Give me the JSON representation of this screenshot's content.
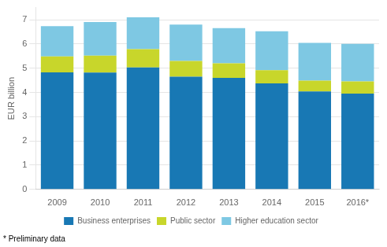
{
  "chart_data": {
    "type": "bar",
    "stacked": true,
    "categories": [
      "2009",
      "2010",
      "2011",
      "2012",
      "2013",
      "2014",
      "2015",
      "2016*"
    ],
    "series": [
      {
        "name": "Business enterprises",
        "color": "#1878b4",
        "values": [
          4.83,
          4.82,
          5.03,
          4.65,
          4.6,
          4.37,
          4.04,
          3.95
        ]
      },
      {
        "name": "Public sector",
        "color": "#c8d62b",
        "values": [
          0.65,
          0.7,
          0.75,
          0.65,
          0.6,
          0.55,
          0.45,
          0.5
        ]
      },
      {
        "name": "Higher education sector",
        "color": "#7ec8e3",
        "values": [
          1.25,
          1.38,
          1.32,
          1.5,
          1.45,
          1.6,
          1.55,
          1.55
        ]
      }
    ],
    "ylabel": "EUR billion",
    "ylim": [
      0,
      7.5
    ],
    "yticks": [
      0,
      1,
      2,
      3,
      4,
      5,
      6,
      7
    ],
    "grid": true,
    "legend": "bottom",
    "annotations": [
      "* Preliminary data"
    ]
  }
}
